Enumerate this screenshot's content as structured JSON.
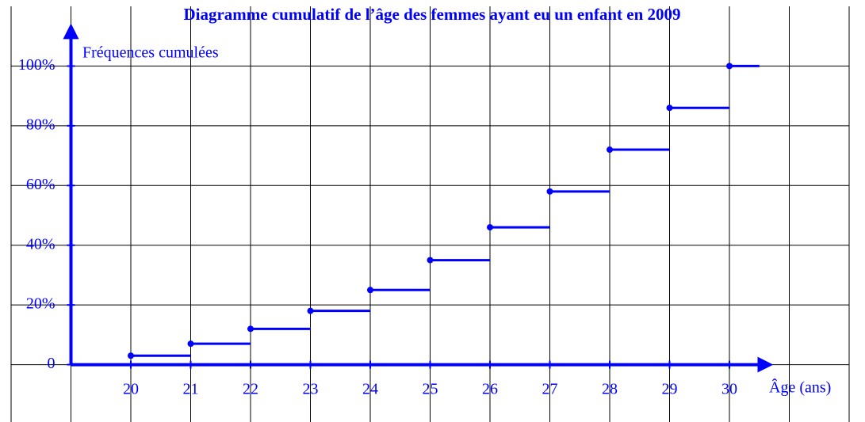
{
  "chart_data": {
    "type": "step",
    "title": "Diagramme cumulatif de l’âge des femmes ayant eu un enfant en 2009",
    "y_label": "Fréquences cumulées",
    "x_label": "Âge (ans)",
    "x": [
      20,
      21,
      22,
      23,
      24,
      25,
      26,
      27,
      28,
      29,
      30
    ],
    "values": [
      3,
      7,
      12,
      18,
      25,
      35,
      46,
      58,
      72,
      86,
      100
    ],
    "color": "#0000ff",
    "xlim": [
      18,
      32
    ],
    "ylim": [
      -20,
      120
    ],
    "xticks": [
      20,
      21,
      22,
      23,
      24,
      25,
      26,
      27,
      28,
      29,
      30
    ],
    "yticks": [
      0,
      {
        "value": 20,
        "label": "20%"
      },
      {
        "value": 40,
        "label": "40%"
      },
      {
        "value": 60,
        "label": "60%"
      },
      {
        "value": 80,
        "label": "80%"
      },
      {
        "value": 100,
        "label": "100%"
      }
    ],
    "grid": true
  }
}
